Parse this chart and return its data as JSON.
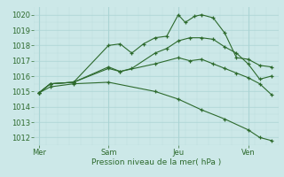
{
  "title": "",
  "xlabel": "Pression niveau de la mer( hPa )",
  "ylabel": "",
  "bg_color": "#cce8e8",
  "grid_color": "#aad4d4",
  "line_color": "#2d6a2d",
  "tick_color": "#2d6a2d",
  "ylim": [
    1011.5,
    1020.5
  ],
  "yticks": [
    1012,
    1013,
    1014,
    1015,
    1016,
    1017,
    1018,
    1019,
    1020
  ],
  "day_labels": [
    "Mer",
    "Sam",
    "Jeu",
    "Ven"
  ],
  "day_positions": [
    0,
    3,
    6,
    9
  ],
  "xlim": [
    -0.2,
    10.3
  ],
  "series": [
    {
      "x": [
        0,
        0.5,
        1.5,
        3,
        3.5,
        4.0,
        4.5,
        5.0,
        5.5,
        6.0,
        6.3,
        6.7,
        7.0,
        7.5,
        8.0,
        8.5,
        9.0,
        9.5,
        10.0
      ],
      "y": [
        1014.9,
        1015.5,
        1015.6,
        1018.0,
        1018.1,
        1017.5,
        1018.1,
        1018.5,
        1018.6,
        1020.0,
        1019.5,
        1019.9,
        1020.0,
        1019.8,
        1018.8,
        1017.2,
        1017.1,
        1016.7,
        1016.6
      ]
    },
    {
      "x": [
        0,
        0.5,
        1.5,
        3,
        3.5,
        4.0,
        5.0,
        5.5,
        6.0,
        6.5,
        7.0,
        7.5,
        8.0,
        8.5,
        9.0,
        9.5,
        10.0
      ],
      "y": [
        1014.9,
        1015.5,
        1015.6,
        1016.6,
        1016.3,
        1016.5,
        1017.5,
        1017.8,
        1018.3,
        1018.5,
        1018.5,
        1018.4,
        1017.9,
        1017.5,
        1016.8,
        1015.8,
        1016.0
      ]
    },
    {
      "x": [
        0,
        0.5,
        1.5,
        3,
        3.5,
        5.0,
        6.0,
        6.5,
        7.0,
        7.5,
        8.0,
        8.5,
        9.0,
        9.5,
        10.0
      ],
      "y": [
        1014.9,
        1015.5,
        1015.6,
        1016.5,
        1016.3,
        1016.8,
        1017.2,
        1017.0,
        1017.1,
        1016.8,
        1016.5,
        1016.2,
        1015.9,
        1015.5,
        1014.8
      ]
    },
    {
      "x": [
        0,
        0.5,
        1.5,
        3.0,
        5.0,
        6.0,
        7.0,
        8.0,
        9.0,
        9.5,
        10.0
      ],
      "y": [
        1014.9,
        1015.3,
        1015.5,
        1015.6,
        1015.0,
        1014.5,
        1013.8,
        1013.2,
        1012.5,
        1012.0,
        1011.8
      ]
    }
  ],
  "figsize": [
    3.2,
    2.0
  ],
  "dpi": 100
}
